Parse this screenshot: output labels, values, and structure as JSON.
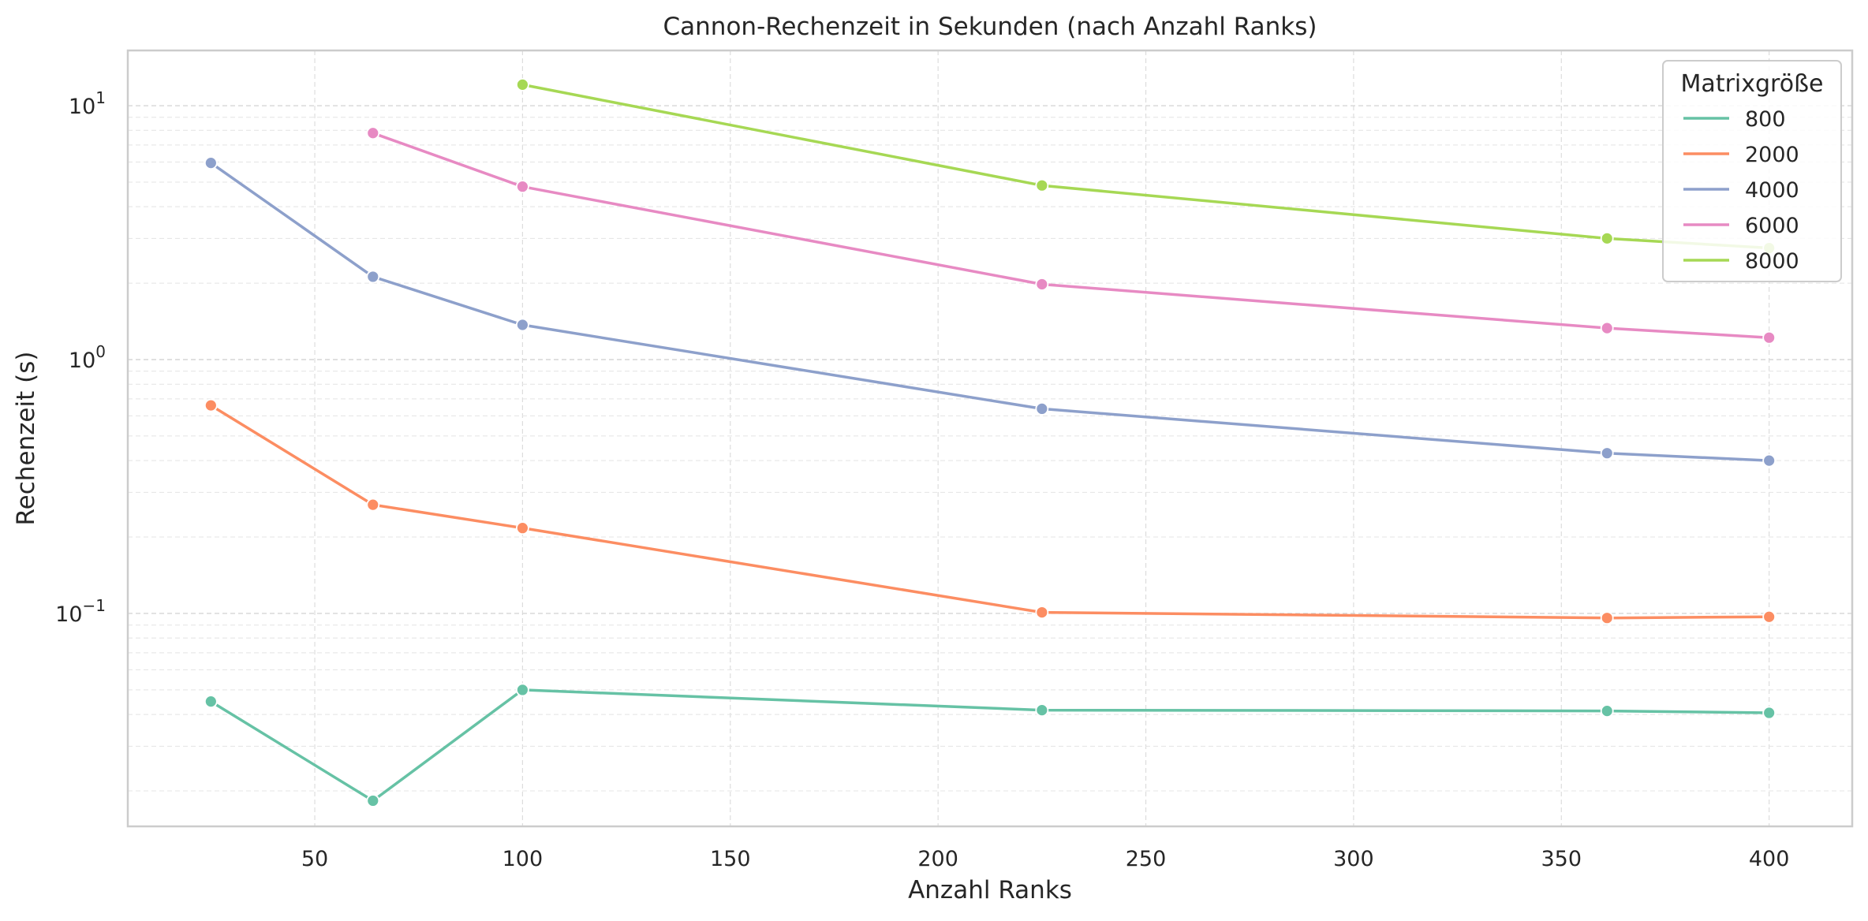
{
  "chart_data": {
    "type": "line",
    "title": "Cannon-Rechenzeit in Sekunden (nach Anzahl Ranks)",
    "xlabel": "Anzahl Ranks",
    "ylabel": "Rechenzeit (s)",
    "xlim": [
      5,
      420
    ],
    "ylim": [
      0.0145,
      16.5
    ],
    "y_scale": "log",
    "grid": true,
    "x_ticks": [
      50,
      100,
      150,
      200,
      250,
      300,
      350,
      400
    ],
    "x_tick_labels": [
      "50",
      "100",
      "150",
      "200",
      "250",
      "300",
      "350",
      "400"
    ],
    "y_ticks": [
      0.1,
      1,
      10
    ],
    "y_tick_labels": [
      {
        "base": "10",
        "exp": "−1"
      },
      {
        "base": "10",
        "exp": "0"
      },
      {
        "base": "10",
        "exp": "1"
      }
    ],
    "legend": {
      "title": "Matrixgröße",
      "placement": "top-right"
    },
    "series": [
      {
        "name": "800",
        "color": "#66c2a5",
        "x": [
          25,
          64,
          100,
          225,
          361,
          400
        ],
        "y": [
          0.045,
          0.0183,
          0.05,
          0.0416,
          0.0413,
          0.0406
        ]
      },
      {
        "name": "2000",
        "color": "#fc8d62",
        "x": [
          25,
          64,
          100,
          225,
          361,
          400
        ],
        "y": [
          0.66,
          0.268,
          0.217,
          0.101,
          0.096,
          0.097
        ]
      },
      {
        "name": "4000",
        "color": "#8da0cb",
        "x": [
          25,
          64,
          100,
          225,
          361,
          400
        ],
        "y": [
          5.95,
          2.12,
          1.37,
          0.64,
          0.428,
          0.4
        ]
      },
      {
        "name": "6000",
        "color": "#e78ac3",
        "x": [
          64,
          100,
          225,
          361,
          400
        ],
        "y": [
          7.8,
          4.8,
          1.98,
          1.33,
          1.22
        ]
      },
      {
        "name": "8000",
        "color": "#a6d854",
        "x": [
          100,
          225,
          361,
          400
        ],
        "y": [
          12.1,
          4.85,
          3.0,
          2.75
        ]
      }
    ]
  }
}
